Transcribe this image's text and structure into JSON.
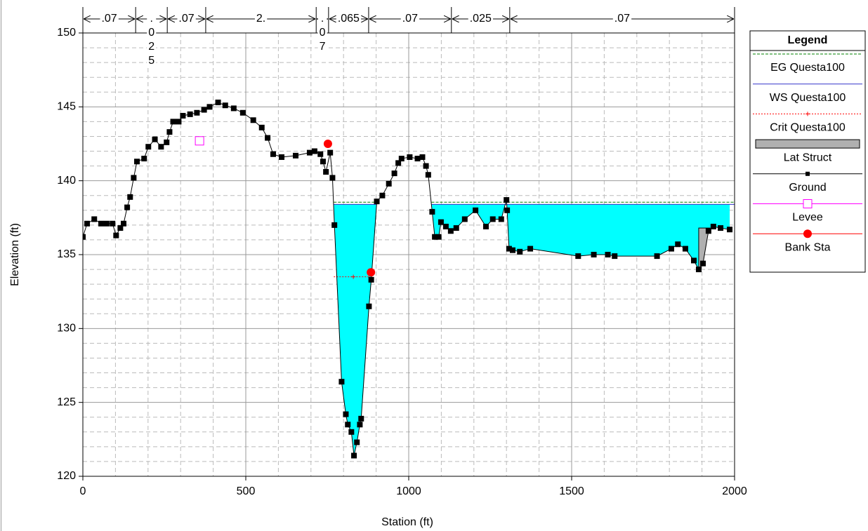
{
  "chart_data": {
    "type": "line",
    "xlabel": "Station (ft)",
    "ylabel": "Elevation (ft)",
    "xlim": [
      0,
      2000
    ],
    "ylim": [
      120,
      150
    ],
    "xticks": [
      0,
      500,
      1000,
      1500,
      2000
    ],
    "yticks": [
      120,
      125,
      130,
      135,
      140,
      145,
      150
    ],
    "grid": true,
    "legend": "right",
    "legend_title": "Legend",
    "mannings": {
      "breaks": [
        0,
        162,
        259,
        377,
        716,
        754,
        877,
        1131,
        1310,
        2000
      ],
      "labels": [
        ".07",
        ".025",
        ".07",
        "2.",
        ".07",
        ".065",
        ".07",
        ".025",
        ".07"
      ]
    },
    "series": [
      {
        "name": "EG Questa100",
        "color": "#008000",
        "style": "dashed",
        "x": [
          770,
          900,
          985,
          1070,
          2000
        ],
        "values": [
          138.55,
          138.55,
          null,
          138.55,
          138.55
        ]
      },
      {
        "name": "WS Questa100",
        "color": "#3333cc",
        "fill": "#00ffff",
        "style": "solid",
        "x": [
          770,
          900,
          985,
          1070,
          2000
        ],
        "values": [
          138.4,
          138.4,
          null,
          138.4,
          138.4
        ]
      },
      {
        "name": "Crit Questa100",
        "color": "#ff0000",
        "style": "dotted",
        "marker": "plus",
        "x": [
          770,
          830,
          880
        ],
        "values": [
          133.5,
          133.5,
          133.5
        ]
      },
      {
        "name": "Lat Struct",
        "color": "#b0b0b0",
        "style": "block",
        "x": [
          1890,
          1925
        ],
        "values": [
          136.8,
          136.8
        ]
      },
      {
        "name": "Ground",
        "color": "#000000",
        "style": "solid",
        "marker": "square",
        "x": [
          0,
          13,
          35,
          56,
          73,
          91,
          102,
          115,
          125,
          136,
          145,
          156,
          166,
          188,
          201,
          221,
          240,
          257,
          266,
          277,
          294,
          307,
          329,
          350,
          372,
          389,
          415,
          437,
          463,
          491,
          523,
          549,
          567,
          584,
          610,
          653,
          696,
          711,
          729,
          737,
          746,
          759,
          766,
          772,
          794,
          807,
          813,
          824,
          832,
          841,
          850,
          854,
          878,
          885,
          902,
          919,
          939,
          956,
          968,
          978,
          1003,
          1027,
          1042,
          1053,
          1060,
          1072,
          1080,
          1092,
          1099,
          1114,
          1129,
          1146,
          1172,
          1205,
          1237,
          1258,
          1284,
          1300,
          1302,
          1308,
          1319,
          1341,
          1373,
          1520,
          1568,
          1611,
          1632,
          1762,
          1806,
          1826,
          1849,
          1875,
          1890,
          1903,
          1920,
          1935,
          1957,
          1985
        ],
        "values": [
          136.2,
          137.1,
          137.4,
          137.1,
          137.1,
          137.1,
          136.3,
          136.8,
          137.1,
          138.2,
          138.9,
          140.2,
          141.3,
          141.5,
          142.3,
          142.8,
          142.3,
          142.6,
          143.3,
          144.0,
          144.0,
          144.4,
          144.5,
          144.6,
          144.8,
          145.0,
          145.3,
          145.1,
          144.9,
          144.6,
          144.1,
          143.6,
          142.9,
          141.8,
          141.6,
          141.7,
          141.9,
          142.0,
          141.8,
          141.3,
          140.6,
          141.9,
          140.2,
          137.0,
          126.4,
          124.2,
          123.5,
          123.0,
          121.4,
          122.3,
          123.5,
          123.9,
          131.5,
          133.3,
          138.6,
          139.0,
          139.8,
          140.5,
          141.2,
          141.5,
          141.6,
          141.5,
          141.6,
          141.0,
          140.4,
          137.9,
          136.2,
          136.2,
          137.2,
          136.9,
          136.6,
          136.8,
          137.4,
          138.0,
          136.9,
          137.4,
          137.4,
          138.7,
          138.0,
          135.4,
          135.3,
          135.2,
          135.4,
          134.9,
          135.0,
          135.0,
          134.9,
          134.9,
          135.4,
          135.7,
          135.4,
          134.6,
          134.0,
          134.4,
          136.6,
          136.9,
          136.8,
          136.7
        ]
      },
      {
        "name": "Levee",
        "color": "#ff00ff",
        "marker": "open-square",
        "x": [
          358
        ],
        "values": [
          142.7
        ]
      },
      {
        "name": "Bank Sta",
        "color": "#ff0000",
        "marker": "circle",
        "x": [
          752,
          884
        ],
        "values": [
          142.5,
          133.8
        ]
      }
    ]
  }
}
